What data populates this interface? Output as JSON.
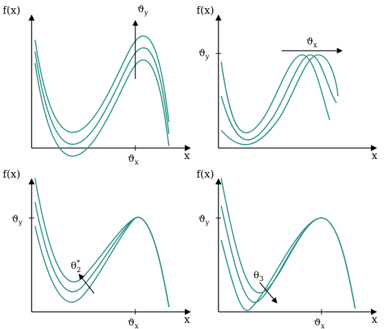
{
  "colors": {
    "curve": "#2a9189",
    "axis": "#000000",
    "background": "#ffffff"
  },
  "panels": [
    {
      "id": "top-left",
      "y_axis_label": "f(x)",
      "x_axis_label": "x",
      "x_tick": {
        "base": "ϑ",
        "sub": "x"
      },
      "y_tick": null,
      "annotation": {
        "base": "ϑ",
        "sub": "y",
        "sup": null
      },
      "arrow_direction": "up"
    },
    {
      "id": "top-right",
      "y_axis_label": "f(x)",
      "x_axis_label": "x",
      "x_tick": null,
      "y_tick": {
        "base": "ϑ",
        "sub": "y"
      },
      "annotation": {
        "base": "ϑ",
        "sub": "x",
        "sup": null
      },
      "arrow_direction": "right"
    },
    {
      "id": "bottom-left",
      "y_axis_label": "f(x)",
      "x_axis_label": "x",
      "x_tick": {
        "base": "ϑ",
        "sub": "x"
      },
      "y_tick": {
        "base": "ϑ",
        "sub": "y"
      },
      "annotation": {
        "base": "θ",
        "sub": "2",
        "sup": "*"
      },
      "arrow_direction": "up-left"
    },
    {
      "id": "bottom-right",
      "y_axis_label": "f(x)",
      "x_axis_label": "x",
      "x_tick": {
        "base": "ϑ",
        "sub": "x"
      },
      "y_tick": {
        "base": "ϑ",
        "sub": "y"
      },
      "annotation": {
        "base": "θ",
        "sub": "3",
        "sup": null
      },
      "arrow_direction": "down-right"
    }
  ]
}
